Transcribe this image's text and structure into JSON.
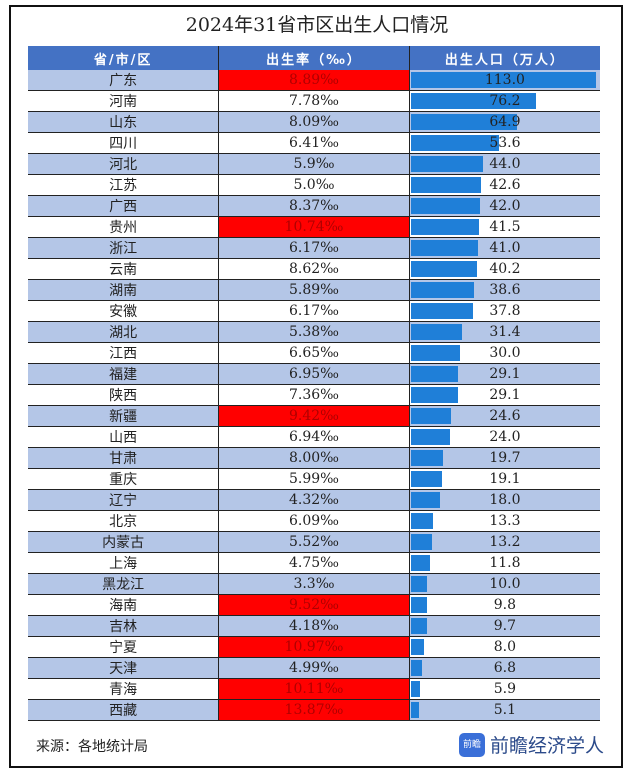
{
  "chart_data": {
    "type": "table",
    "title": "2024年31省市区出生人口情况",
    "columns": [
      "省/市/区",
      "出生率（‰）",
      "出生人口（万人）"
    ],
    "rows": [
      {
        "region": "广东",
        "rate": "8.89‰",
        "births": "113.0",
        "highlight": true
      },
      {
        "region": "河南",
        "rate": "7.78‰",
        "births": "76.2",
        "highlight": false
      },
      {
        "region": "山东",
        "rate": "8.09‰",
        "births": "64.9",
        "highlight": false
      },
      {
        "region": "四川",
        "rate": "6.41‰",
        "births": "53.6",
        "highlight": false
      },
      {
        "region": "河北",
        "rate": "5.9‰",
        "births": "44.0",
        "highlight": false
      },
      {
        "region": "江苏",
        "rate": "5.0‰",
        "births": "42.6",
        "highlight": false
      },
      {
        "region": "广西",
        "rate": "8.37‰",
        "births": "42.0",
        "highlight": false
      },
      {
        "region": "贵州",
        "rate": "10.74‰",
        "births": "41.5",
        "highlight": true
      },
      {
        "region": "浙江",
        "rate": "6.17‰",
        "births": "41.0",
        "highlight": false
      },
      {
        "region": "云南",
        "rate": "8.62‰",
        "births": "40.2",
        "highlight": false
      },
      {
        "region": "湖南",
        "rate": "5.89‰",
        "births": "38.6",
        "highlight": false
      },
      {
        "region": "安徽",
        "rate": "6.17‰",
        "births": "37.8",
        "highlight": false
      },
      {
        "region": "湖北",
        "rate": "5.38‰",
        "births": "31.4",
        "highlight": false
      },
      {
        "region": "江西",
        "rate": "6.65‰",
        "births": "30.0",
        "highlight": false
      },
      {
        "region": "福建",
        "rate": "6.95‰",
        "births": "29.1",
        "highlight": false
      },
      {
        "region": "陕西",
        "rate": "7.36‰",
        "births": "29.1",
        "highlight": false
      },
      {
        "region": "新疆",
        "rate": "9.42‰",
        "births": "24.6",
        "highlight": true
      },
      {
        "region": "山西",
        "rate": "6.94‰",
        "births": "24.0",
        "highlight": false
      },
      {
        "region": "甘肃",
        "rate": "8.00‰",
        "births": "19.7",
        "highlight": false
      },
      {
        "region": "重庆",
        "rate": "5.99‰",
        "births": "19.1",
        "highlight": false
      },
      {
        "region": "辽宁",
        "rate": "4.32‰",
        "births": "18.0",
        "highlight": false
      },
      {
        "region": "北京",
        "rate": "6.09‰",
        "births": "13.3",
        "highlight": false
      },
      {
        "region": "内蒙古",
        "rate": "5.52‰",
        "births": "13.2",
        "highlight": false
      },
      {
        "region": "上海",
        "rate": "4.75‰",
        "births": "11.8",
        "highlight": false
      },
      {
        "region": "黑龙江",
        "rate": "3.3‰",
        "births": "10.0",
        "highlight": false
      },
      {
        "region": "海南",
        "rate": "9.52‰",
        "births": "9.8",
        "highlight": true
      },
      {
        "region": "吉林",
        "rate": "4.18‰",
        "births": "9.7",
        "highlight": false
      },
      {
        "region": "宁夏",
        "rate": "10.97‰",
        "births": "8.0",
        "highlight": true
      },
      {
        "region": "天津",
        "rate": "4.99‰",
        "births": "6.8",
        "highlight": false
      },
      {
        "region": "青海",
        "rate": "10.11‰",
        "births": "5.9",
        "highlight": true
      },
      {
        "region": "西藏",
        "rate": "13.87‰",
        "births": "5.1",
        "highlight": true
      }
    ],
    "colors": {
      "header": "#4472c4",
      "row_alt": "#b4c6e7",
      "highlight": "#ff0000",
      "bar": "#1f7fd8"
    }
  },
  "footer": {
    "source": "来源：各地统计局",
    "logo_text": "前瞻",
    "brand": "前瞻经济学人"
  }
}
